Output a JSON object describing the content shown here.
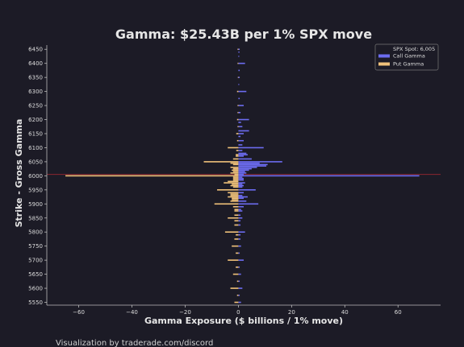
{
  "chart_data": {
    "type": "bar",
    "orientation": "horizontal",
    "title": "Gamma: $25.43B per 1% SPX move",
    "xlabel": "Gamma Exposure ($ billions / 1% move)",
    "ylabel": "Strike - Gross Gamma",
    "footer": "Visualization by traderade.com/discord",
    "xlim": [
      -72,
      76
    ],
    "ylim": [
      5540,
      6465
    ],
    "xticks": [
      -60,
      -40,
      -20,
      0,
      20,
      40,
      60
    ],
    "yticks": [
      5550,
      5600,
      5650,
      5700,
      5750,
      5800,
      5850,
      5900,
      5950,
      6000,
      6050,
      6100,
      6150,
      6200,
      6250,
      6300,
      6350,
      6400,
      6450
    ],
    "grid": false,
    "legend_position": "top-right",
    "spot": {
      "label": "SPX Spot: 6,005",
      "value": 6005
    },
    "colors": {
      "background": "#1c1b26",
      "call": "#6c6cf0",
      "put": "#f0c27a",
      "spot_line": "#8a2630",
      "text": "#e6e6e6",
      "axis": "#bbbbbb"
    },
    "series": [
      {
        "name": "Call Gamma",
        "points": [
          [
            6450,
            0.5
          ],
          [
            6440,
            0.4
          ],
          [
            6425,
            0.3
          ],
          [
            6400,
            2.5
          ],
          [
            6375,
            0.5
          ],
          [
            6350,
            0.5
          ],
          [
            6325,
            0.3
          ],
          [
            6300,
            3.0
          ],
          [
            6275,
            0.5
          ],
          [
            6250,
            2.0
          ],
          [
            6225,
            0.8
          ],
          [
            6200,
            4.0
          ],
          [
            6190,
            1.0
          ],
          [
            6175,
            1.5
          ],
          [
            6160,
            4.0
          ],
          [
            6150,
            2.0
          ],
          [
            6140,
            0.8
          ],
          [
            6125,
            2.0
          ],
          [
            6110,
            1.5
          ],
          [
            6100,
            9.5
          ],
          [
            6090,
            1.5
          ],
          [
            6080,
            3.0
          ],
          [
            6075,
            3.5
          ],
          [
            6070,
            2.0
          ],
          [
            6060,
            5.0
          ],
          [
            6050,
            16.5
          ],
          [
            6045,
            8.0
          ],
          [
            6040,
            11.0
          ],
          [
            6035,
            10.5
          ],
          [
            6030,
            7.0
          ],
          [
            6025,
            5.0
          ],
          [
            6020,
            4.0
          ],
          [
            6015,
            2.5
          ],
          [
            6010,
            3.0
          ],
          [
            6005,
            2.0
          ],
          [
            6000,
            68.0
          ],
          [
            5995,
            1.5
          ],
          [
            5990,
            2.0
          ],
          [
            5985,
            2.0
          ],
          [
            5975,
            2.5
          ],
          [
            5970,
            1.5
          ],
          [
            5965,
            2.0
          ],
          [
            5960,
            1.5
          ],
          [
            5950,
            6.5
          ],
          [
            5940,
            2.0
          ],
          [
            5930,
            1.5
          ],
          [
            5925,
            3.5
          ],
          [
            5920,
            2.0
          ],
          [
            5910,
            3.0
          ],
          [
            5900,
            7.5
          ],
          [
            5890,
            2.0
          ],
          [
            5880,
            1.0
          ],
          [
            5875,
            1.5
          ],
          [
            5860,
            0.8
          ],
          [
            5850,
            1.5
          ],
          [
            5840,
            0.8
          ],
          [
            5825,
            0.8
          ],
          [
            5800,
            2.5
          ],
          [
            5790,
            0.8
          ],
          [
            5775,
            0.8
          ],
          [
            5750,
            1.0
          ],
          [
            5725,
            0.5
          ],
          [
            5700,
            2.0
          ],
          [
            5675,
            0.5
          ],
          [
            5650,
            1.0
          ],
          [
            5625,
            0.5
          ],
          [
            5600,
            1.5
          ],
          [
            5575,
            0.5
          ],
          [
            5550,
            1.0
          ]
        ]
      },
      {
        "name": "Put Gamma",
        "points": [
          [
            6450,
            -0.3
          ],
          [
            6400,
            -0.3
          ],
          [
            6350,
            -0.2
          ],
          [
            6300,
            -0.5
          ],
          [
            6250,
            -0.3
          ],
          [
            6225,
            -0.3
          ],
          [
            6200,
            -0.5
          ],
          [
            6175,
            -0.3
          ],
          [
            6150,
            -0.8
          ],
          [
            6125,
            -0.5
          ],
          [
            6100,
            -4.0
          ],
          [
            6090,
            -0.8
          ],
          [
            6075,
            -1.0
          ],
          [
            6070,
            -1.0
          ],
          [
            6060,
            -2.0
          ],
          [
            6050,
            -13.0
          ],
          [
            6045,
            -3.0
          ],
          [
            6040,
            -2.0
          ],
          [
            6030,
            -3.0
          ],
          [
            6025,
            -2.0
          ],
          [
            6020,
            -2.5
          ],
          [
            6015,
            -2.0
          ],
          [
            6010,
            -3.0
          ],
          [
            6005,
            -1.5
          ],
          [
            6000,
            -65.0
          ],
          [
            5995,
            -2.0
          ],
          [
            5990,
            -2.0
          ],
          [
            5985,
            -2.0
          ],
          [
            5980,
            -4.0
          ],
          [
            5975,
            -5.5
          ],
          [
            5970,
            -2.5
          ],
          [
            5965,
            -3.0
          ],
          [
            5960,
            -2.0
          ],
          [
            5950,
            -8.0
          ],
          [
            5940,
            -4.0
          ],
          [
            5935,
            -3.0
          ],
          [
            5930,
            -3.0
          ],
          [
            5925,
            -4.0
          ],
          [
            5920,
            -2.5
          ],
          [
            5915,
            -2.5
          ],
          [
            5910,
            -3.0
          ],
          [
            5900,
            -9.0
          ],
          [
            5890,
            -2.0
          ],
          [
            5880,
            -1.5
          ],
          [
            5875,
            -1.5
          ],
          [
            5860,
            -1.5
          ],
          [
            5850,
            -4.0
          ],
          [
            5840,
            -1.5
          ],
          [
            5825,
            -1.5
          ],
          [
            5800,
            -5.0
          ],
          [
            5790,
            -1.0
          ],
          [
            5775,
            -1.5
          ],
          [
            5750,
            -2.5
          ],
          [
            5725,
            -1.0
          ],
          [
            5700,
            -4.0
          ],
          [
            5675,
            -1.0
          ],
          [
            5650,
            -2.0
          ],
          [
            5625,
            -0.5
          ],
          [
            5600,
            -3.0
          ],
          [
            5575,
            -0.5
          ],
          [
            5550,
            -1.5
          ]
        ]
      }
    ]
  }
}
